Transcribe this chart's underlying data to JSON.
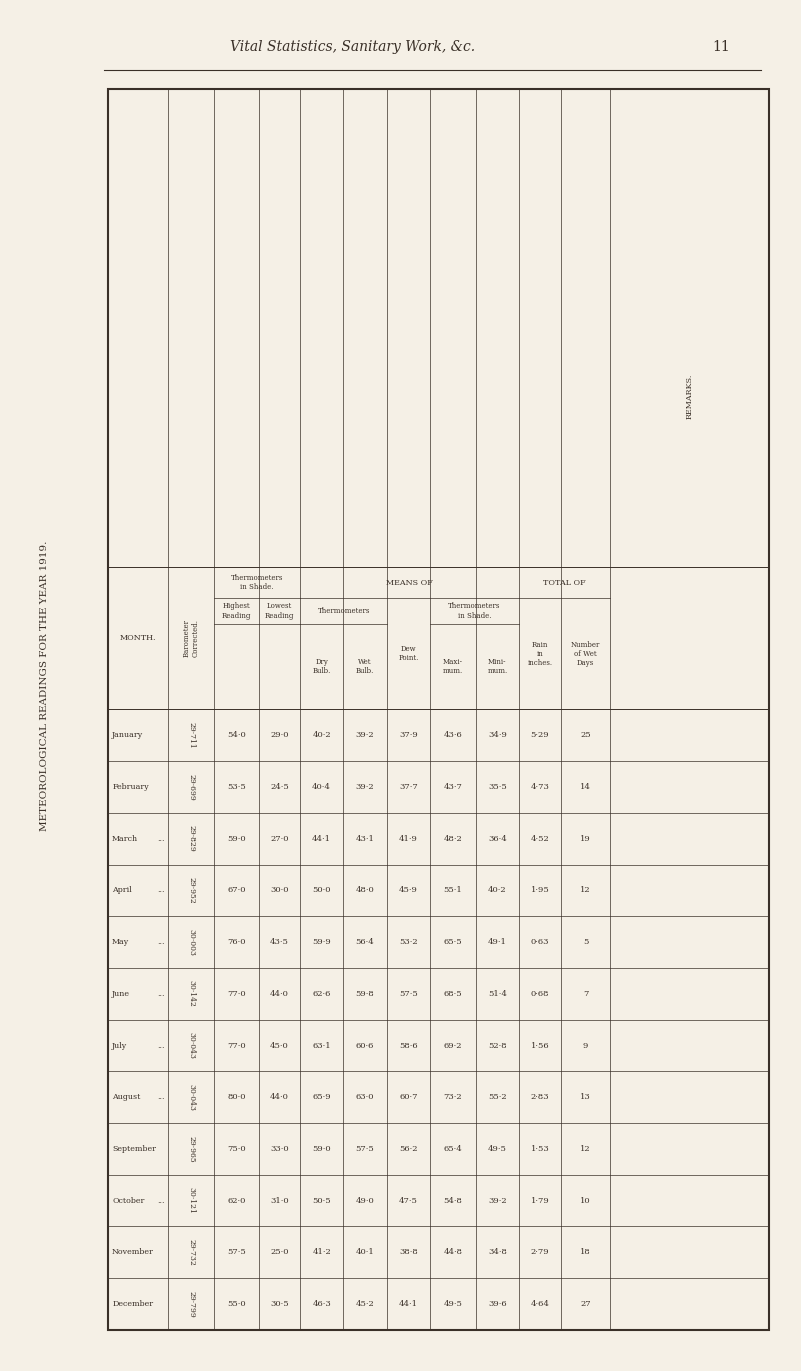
{
  "page_header": "Vital Statistics, Sanitary Work, &c.",
  "page_number": "11",
  "table_title": "METEOROLOGICAL READINGS FOR THE YEAR 1919.",
  "background_color": "#f5f0e6",
  "text_color": "#3a3028",
  "months": [
    "January",
    "February",
    "March ...",
    "April  ...",
    "May  ...",
    "June  ...",
    "July  ...",
    "August ...",
    "September",
    "October...",
    "November",
    "December"
  ],
  "barometer_corrected": [
    "29·711",
    "29·699",
    "29·829",
    "29·952",
    "30·003",
    "30·142",
    "30·043",
    "30·043",
    "29·965",
    "30·121",
    "29·732",
    "29·799"
  ],
  "thermo_shade_highest": [
    "54·0",
    "53·5",
    "59·0",
    "67·0",
    "76·0",
    "77·0",
    "77·0",
    "80·0",
    "75·0",
    "62·0",
    "57·5",
    "55·0"
  ],
  "thermo_shade_lowest": [
    "29·0",
    "24·5",
    "27·0",
    "30·0",
    "43·5",
    "44·0",
    "45·0",
    "44·0",
    "33·0",
    "31·0",
    "25·0",
    "30·5"
  ],
  "means_dry_bulb": [
    "40·2",
    "40·4",
    "44·1",
    "50·0",
    "59·9",
    "62·6",
    "63·1",
    "65·9",
    "59·0",
    "50·5",
    "41·2",
    "46·3"
  ],
  "means_wet_bulb": [
    "39·2",
    "39·2",
    "43·1",
    "48·0",
    "56·4",
    "59·8",
    "60·6",
    "63·0",
    "57·5",
    "49·0",
    "40·1",
    "45·2"
  ],
  "means_dew_point": [
    "37·9",
    "37·7",
    "41·9",
    "45·9",
    "53·2",
    "57·5",
    "58·6",
    "60·7",
    "56·2",
    "47·5",
    "38·8",
    "44·1"
  ],
  "means_shade_max": [
    "43·6",
    "43·7",
    "48·2",
    "55·1",
    "65·5",
    "68·5",
    "69·2",
    "73·2",
    "65·4",
    "54·8",
    "44·8",
    "49·5"
  ],
  "means_shade_min": [
    "34·9",
    "35·5",
    "36·4",
    "40·2",
    "49·1",
    "51·4",
    "52·8",
    "55·2",
    "49·5",
    "39·2",
    "34·8",
    "39·6"
  ],
  "rain_inches": [
    "5·29",
    "4·73",
    "4·52",
    "1·95",
    "0·63",
    "0·68",
    "1·56",
    "2·83",
    "1·53",
    "1·79",
    "2·79",
    "4·64"
  ],
  "num_wet_days": [
    "25",
    "14",
    "19",
    "12",
    "5",
    "7",
    "9",
    "13",
    "12",
    "10",
    "18",
    "27"
  ]
}
